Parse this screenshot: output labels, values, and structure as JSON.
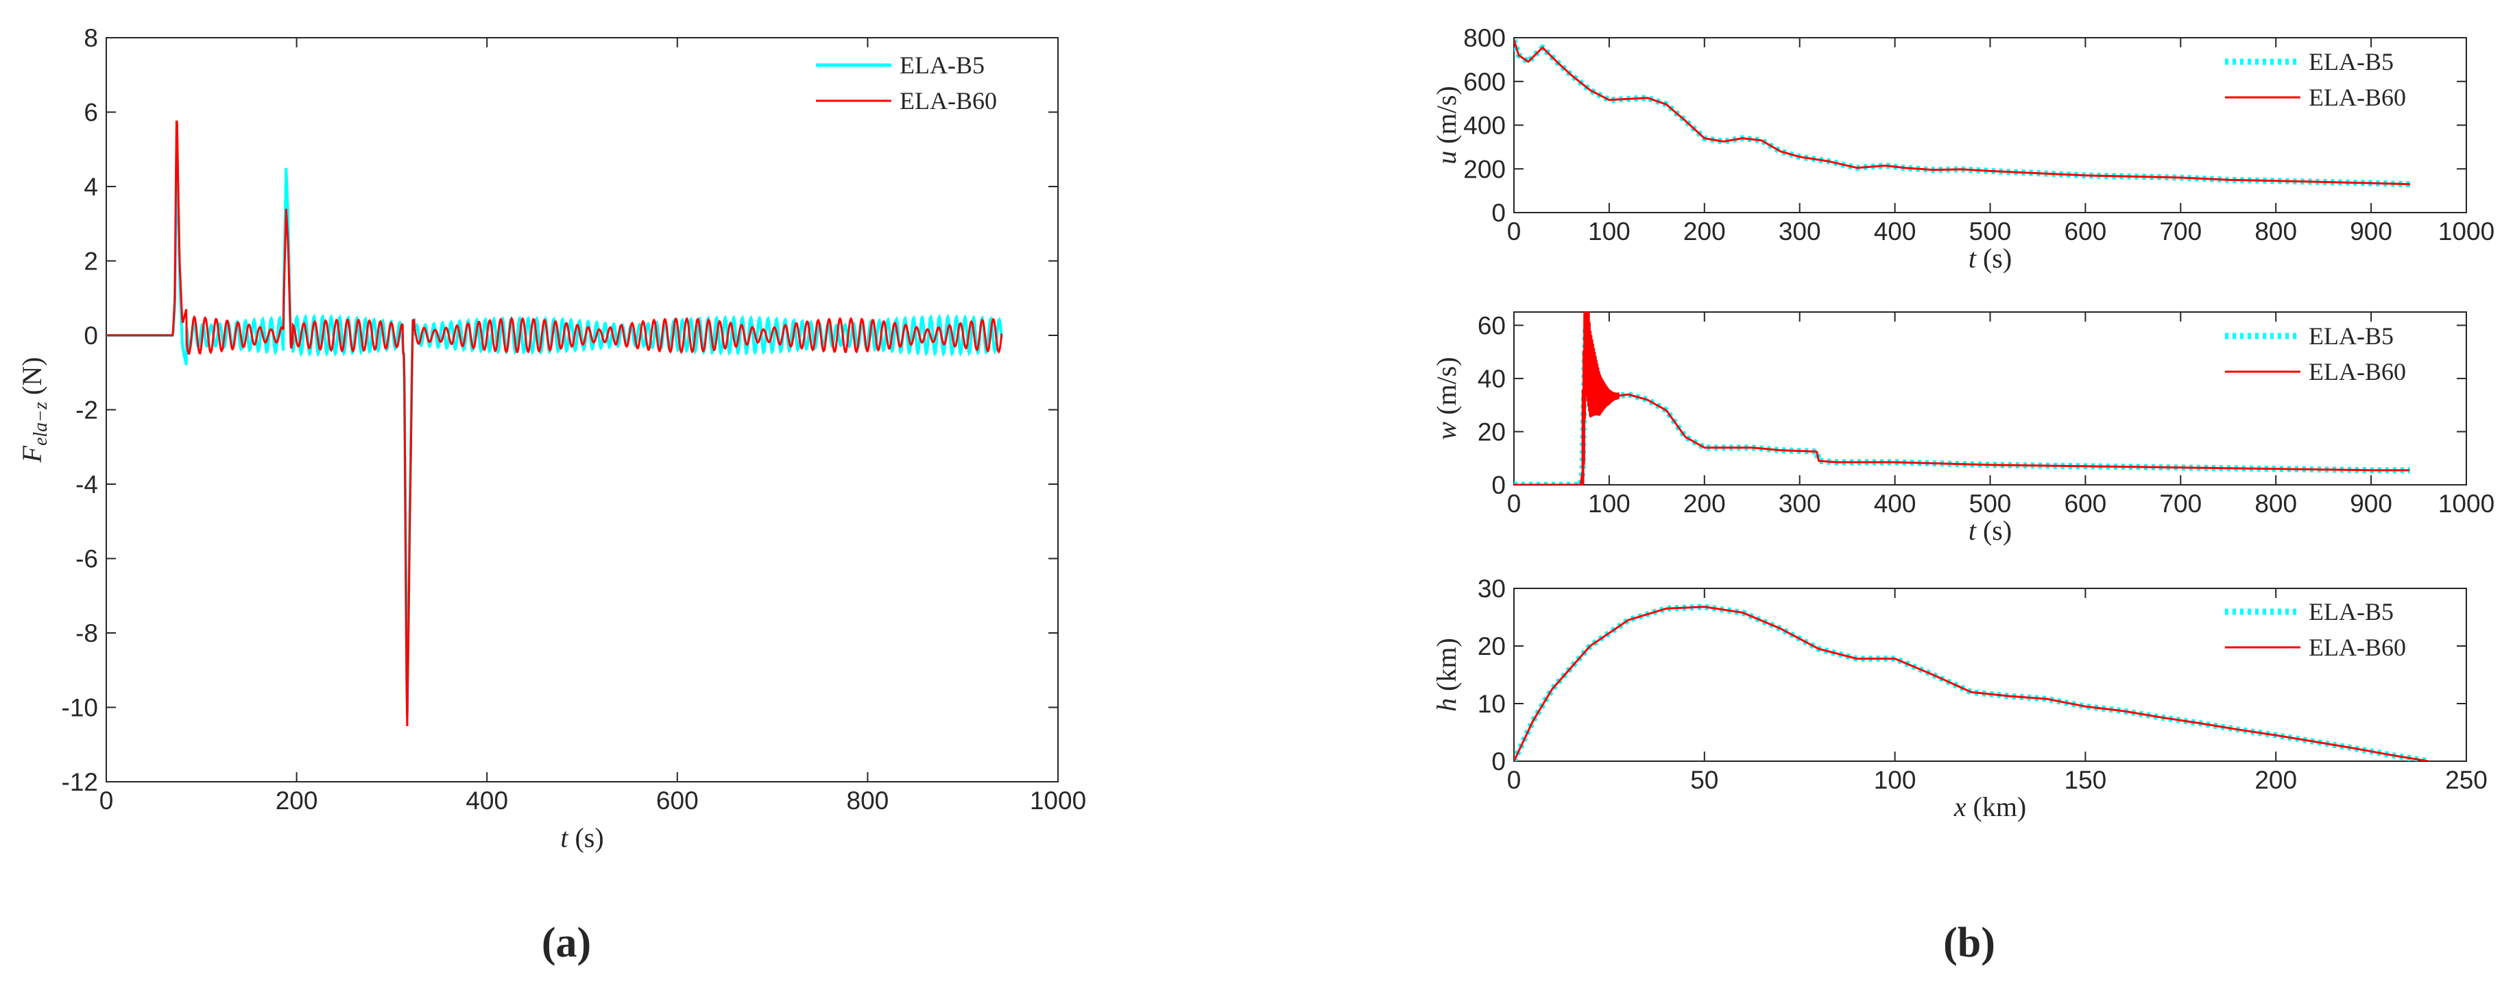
{
  "panel_labels": {
    "a": "(a)",
    "b": "(b)"
  },
  "series_names": {
    "b5": "ELA-B5",
    "b60": "ELA-B60"
  },
  "colors": {
    "b5": "#00FFFF",
    "b60": "#FF0000",
    "axis": "#262626"
  },
  "chart_data": [
    {
      "id": "force",
      "type": "line",
      "title": "",
      "xlabel": {
        "var": "t",
        "unit": "(s)"
      },
      "ylabel": {
        "var": "F",
        "sub": "ela−z",
        "unit": "(N)"
      },
      "xlim": [
        0,
        1000
      ],
      "ylim": [
        -12,
        8
      ],
      "xticks": [
        0,
        200,
        400,
        600,
        800,
        1000
      ],
      "yticks": [
        -12,
        -10,
        -8,
        -6,
        -4,
        -2,
        0,
        2,
        4,
        6,
        8
      ],
      "xtick_labels": [
        "0",
        "200",
        "400",
        "600",
        "800",
        "1000"
      ],
      "ytick_labels": [
        "-12",
        "-10",
        "-8",
        "-6",
        "-4",
        "-2",
        "0",
        "2",
        "4",
        "6",
        "8"
      ],
      "legend": "top-right",
      "series": [
        {
          "name": "ELA-B5",
          "x": [
            0,
            70,
            72,
            74,
            77,
            80,
            84,
            100,
            140,
            186,
            189,
            191,
            194,
            200,
            260,
            313,
            316,
            319,
            322,
            330,
            400,
            500,
            600,
            700,
            800,
            900,
            941
          ],
          "y": [
            0,
            0,
            0.8,
            5.4,
            1.6,
            -0.3,
            -0.8,
            0.45,
            0.4,
            0.6,
            4.5,
            3.2,
            -0.4,
            0.4,
            0.4,
            -0.5,
            -10.6,
            -4.5,
            0.4,
            0.5,
            0.5,
            0.5,
            0.5,
            0.5,
            0.5,
            0.5,
            0.5
          ],
          "envelope": [
            [
              70,
              0
            ],
            [
              80,
              0.5
            ],
            [
              300,
              0.5
            ],
            [
              420,
              0.45
            ],
            [
              940,
              0.5
            ]
          ]
        },
        {
          "name": "ELA-B60",
          "x": [
            0,
            70,
            72,
            74,
            77,
            80,
            84,
            100,
            140,
            186,
            189,
            191,
            194,
            200,
            260,
            313,
            316,
            319,
            322,
            330,
            400,
            500,
            600,
            700,
            800,
            900,
            941
          ],
          "y": [
            0,
            0,
            1,
            6.3,
            2,
            0.3,
            0.7,
            0.4,
            0.35,
            0.5,
            3.4,
            2.5,
            -0.4,
            0.35,
            0.35,
            -0.5,
            -10.9,
            -5,
            0.4,
            0.45,
            0.4,
            0.45,
            0.4,
            0.45,
            0.5,
            0.45,
            0.4
          ],
          "envelope": [
            [
              70,
              0
            ],
            [
              80,
              0.5
            ],
            [
              300,
              0.4
            ],
            [
              420,
              0.45
            ],
            [
              940,
              0.45
            ]
          ]
        }
      ]
    },
    {
      "id": "u",
      "type": "line",
      "xlabel": {
        "var": "t",
        "unit": "(s)"
      },
      "ylabel": {
        "var": "u",
        "unit": "(m/s)"
      },
      "xlim": [
        0,
        1000
      ],
      "ylim": [
        0,
        800
      ],
      "xticks": [
        0,
        100,
        200,
        300,
        400,
        500,
        600,
        700,
        800,
        900,
        1000
      ],
      "yticks": [
        0,
        200,
        400,
        600,
        800
      ],
      "xtick_labels": [
        "0",
        "100",
        "200",
        "300",
        "400",
        "500",
        "600",
        "700",
        "800",
        "900",
        "1000"
      ],
      "ytick_labels": [
        "0",
        "200",
        "400",
        "600",
        "800"
      ],
      "legend": "top-right",
      "series": [
        {
          "name": "ELA-B5",
          "x": [
            0,
            5,
            15,
            30,
            45,
            60,
            80,
            100,
            120,
            140,
            160,
            180,
            200,
            220,
            240,
            260,
            280,
            300,
            330,
            360,
            390,
            410,
            440,
            470,
            500,
            550,
            600,
            650,
            700,
            750,
            800,
            850,
            900,
            941
          ],
          "y": [
            790,
            720,
            690,
            755,
            690,
            630,
            560,
            515,
            520,
            525,
            495,
            420,
            340,
            325,
            340,
            330,
            280,
            255,
            235,
            205,
            215,
            205,
            195,
            198,
            190,
            180,
            170,
            165,
            160,
            150,
            145,
            140,
            135,
            130
          ]
        },
        {
          "name": "ELA-B60",
          "x": [
            0,
            5,
            15,
            30,
            45,
            60,
            80,
            100,
            120,
            140,
            160,
            180,
            200,
            220,
            240,
            260,
            280,
            300,
            330,
            360,
            390,
            410,
            440,
            470,
            500,
            550,
            600,
            650,
            700,
            750,
            800,
            850,
            900,
            941
          ],
          "y": [
            790,
            720,
            690,
            755,
            690,
            630,
            560,
            515,
            520,
            525,
            495,
            420,
            340,
            325,
            340,
            330,
            280,
            255,
            235,
            205,
            215,
            205,
            195,
            198,
            190,
            180,
            170,
            165,
            160,
            150,
            145,
            140,
            135,
            130
          ]
        }
      ]
    },
    {
      "id": "w",
      "type": "line",
      "xlabel": {
        "var": "t",
        "unit": "(s)"
      },
      "ylabel": {
        "var": "w",
        "unit": "(m/s)"
      },
      "xlim": [
        0,
        1000
      ],
      "ylim": [
        0,
        65
      ],
      "xticks": [
        0,
        100,
        200,
        300,
        400,
        500,
        600,
        700,
        800,
        900,
        1000
      ],
      "yticks": [
        0,
        20,
        40,
        60
      ],
      "xtick_labels": [
        "0",
        "100",
        "200",
        "300",
        "400",
        "500",
        "600",
        "700",
        "800",
        "900",
        "1000"
      ],
      "ytick_labels": [
        "0",
        "20",
        "40",
        "60"
      ],
      "legend": "top-right",
      "series": [
        {
          "name": "ELA-B5",
          "x": [
            0,
            70,
            72,
            75,
            80,
            90,
            100,
            120,
            140,
            160,
            180,
            200,
            220,
            250,
            280,
            318,
            320,
            340,
            380,
            400,
            450,
            500,
            600,
            700,
            800,
            900,
            941
          ],
          "y": [
            0,
            0,
            5,
            58,
            42,
            34,
            33,
            34,
            32,
            28,
            18,
            14,
            14,
            14,
            13,
            12.5,
            9,
            8.5,
            8.5,
            8.5,
            8,
            7.5,
            7,
            6.5,
            6,
            5.5,
            5.5
          ]
        },
        {
          "name": "ELA-B60",
          "x": [
            0,
            70,
            72,
            75,
            80,
            90,
            100,
            120,
            140,
            160,
            180,
            200,
            220,
            250,
            280,
            318,
            320,
            340,
            380,
            400,
            450,
            500,
            600,
            700,
            800,
            900,
            941
          ],
          "y": [
            0,
            0,
            5,
            58,
            42,
            34,
            33,
            34,
            32,
            28,
            18,
            14,
            14,
            14,
            13,
            12.5,
            9,
            8.5,
            8.5,
            8.5,
            8,
            7.5,
            7,
            6.5,
            6,
            5.5,
            5.5
          ],
          "oscillation": {
            "t_start": 72,
            "t_end": 110,
            "amp_start": 30,
            "amp_end": 1
          }
        }
      ]
    },
    {
      "id": "h",
      "type": "line",
      "xlabel": {
        "var": "x",
        "unit": "(km)"
      },
      "ylabel": {
        "var": "h",
        "unit": "(km)"
      },
      "xlim": [
        0,
        250
      ],
      "ylim": [
        0,
        30
      ],
      "xticks": [
        0,
        50,
        100,
        150,
        200,
        250
      ],
      "yticks": [
        0,
        10,
        20,
        30
      ],
      "xtick_labels": [
        "0",
        "50",
        "100",
        "150",
        "200",
        "250"
      ],
      "ytick_labels": [
        "0",
        "10",
        "20",
        "30"
      ],
      "legend": "top-right",
      "series": [
        {
          "name": "ELA-B5",
          "x": [
            0,
            5,
            10,
            20,
            30,
            40,
            50,
            60,
            70,
            80,
            90,
            100,
            110,
            120,
            130,
            140,
            150,
            160,
            170,
            180,
            190,
            200,
            210,
            220,
            230,
            240
          ],
          "y": [
            0,
            7,
            12.5,
            20,
            24.5,
            26.5,
            26.8,
            25.8,
            23,
            19.5,
            17.8,
            17.8,
            15,
            12,
            11.3,
            10.8,
            9.5,
            8.7,
            7.6,
            6.6,
            5.5,
            4.5,
            3.4,
            2.3,
            1.1,
            0
          ]
        },
        {
          "name": "ELA-B60",
          "x": [
            0,
            5,
            10,
            20,
            30,
            40,
            50,
            60,
            70,
            80,
            90,
            100,
            110,
            120,
            130,
            140,
            150,
            160,
            170,
            180,
            190,
            200,
            210,
            220,
            230,
            240
          ],
          "y": [
            0,
            7,
            12.5,
            20,
            24.5,
            26.5,
            26.8,
            25.8,
            23,
            19.5,
            17.8,
            17.8,
            15,
            12,
            11.3,
            10.8,
            9.5,
            8.7,
            7.6,
            6.6,
            5.5,
            4.5,
            3.4,
            2.3,
            1.1,
            0
          ]
        }
      ]
    }
  ]
}
